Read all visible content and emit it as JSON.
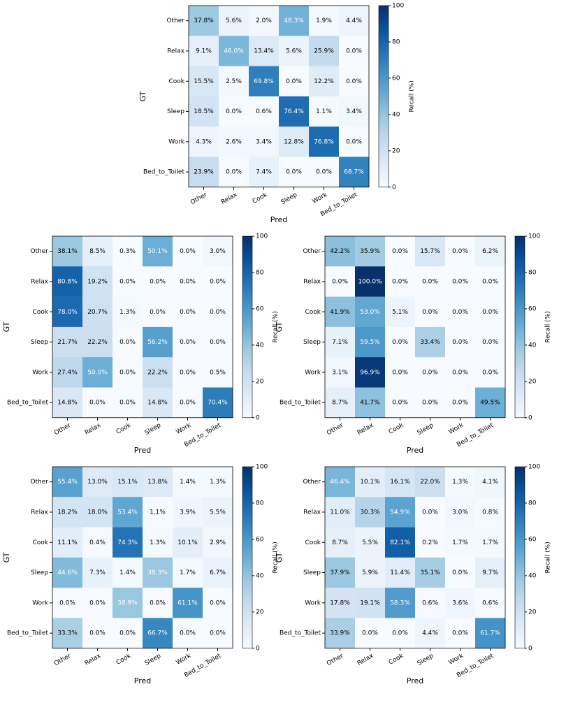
{
  "chart_data": [
    {
      "type": "heatmap",
      "x_label": "Pred",
      "y_label": "GT",
      "colorbar_label": "Recall (%)",
      "colormap": "Blues",
      "zlim": [
        0,
        100
      ],
      "zticks": [
        0,
        20,
        40,
        60,
        80,
        100
      ],
      "x_categories": [
        "Other",
        "Relax",
        "Cook",
        "Sleep",
        "Work",
        "Bed_to_Toilet"
      ],
      "y_categories": [
        "Other",
        "Relax",
        "Cook",
        "Sleep",
        "Work",
        "Bed_to_Toilet"
      ],
      "values": [
        [
          37.8,
          5.6,
          2.0,
          48.3,
          1.9,
          4.4
        ],
        [
          9.1,
          46.0,
          13.4,
          5.6,
          25.9,
          0.0
        ],
        [
          15.5,
          2.5,
          69.8,
          0.0,
          12.2,
          0.0
        ],
        [
          18.5,
          0.0,
          0.6,
          76.4,
          1.1,
          3.4
        ],
        [
          4.3,
          2.6,
          3.4,
          12.8,
          76.8,
          0.0
        ],
        [
          23.9,
          0.0,
          7.4,
          0.0,
          0.0,
          68.7
        ]
      ],
      "value_labels": [
        [
          "37.8%",
          "5.6%",
          "2.0%",
          "48.3%",
          "1.9%",
          "4.4%"
        ],
        [
          "9.1%",
          "46.0%",
          "13.4%",
          "5.6%",
          "25.9%",
          "0.0%"
        ],
        [
          "15.5%",
          "2.5%",
          "69.8%",
          "0.0%",
          "12.2%",
          "0.0%"
        ],
        [
          "18.5%",
          "0.0%",
          "0.6%",
          "76.4%",
          "1.1%",
          "3.4%"
        ],
        [
          "4.3%",
          "2.6%",
          "3.4%",
          "12.8%",
          "76.8%",
          "0.0%"
        ],
        [
          "23.9%",
          "0.0%",
          "7.4%",
          "0.0%",
          "0.0%",
          "68.7%"
        ]
      ]
    },
    {
      "type": "heatmap",
      "x_label": "Pred",
      "y_label": "GT",
      "colorbar_label": "Recall (%)",
      "colormap": "Blues",
      "zlim": [
        0,
        100
      ],
      "zticks": [
        0,
        20,
        40,
        60,
        80,
        100
      ],
      "x_categories": [
        "Other",
        "Relax",
        "Cook",
        "Sleep",
        "Work",
        "Bed_to_Toilet"
      ],
      "y_categories": [
        "Other",
        "Relax",
        "Cook",
        "Sleep",
        "Work",
        "Bed_to_Toilet"
      ],
      "values": [
        [
          38.1,
          8.5,
          0.3,
          50.1,
          0.0,
          3.0
        ],
        [
          80.8,
          19.2,
          0.0,
          0.0,
          0.0,
          0.0
        ],
        [
          78.0,
          20.7,
          1.3,
          0.0,
          0.0,
          0.0
        ],
        [
          21.7,
          22.2,
          0.0,
          56.2,
          0.0,
          0.0
        ],
        [
          27.4,
          50.0,
          0.0,
          22.2,
          0.0,
          0.5
        ],
        [
          14.8,
          0.0,
          0.0,
          14.8,
          0.0,
          70.4
        ]
      ],
      "value_labels": [
        [
          "38.1%",
          "8.5%",
          "0.3%",
          "50.1%",
          "0.0%",
          "3.0%"
        ],
        [
          "80.8%",
          "19.2%",
          "0.0%",
          "0.0%",
          "0.0%",
          "0.0%"
        ],
        [
          "78.0%",
          "20.7%",
          "1.3%",
          "0.0%",
          "0.0%",
          "0.0%"
        ],
        [
          "21.7%",
          "22.2%",
          "0.0%",
          "56.2%",
          "0.0%",
          "0.0%"
        ],
        [
          "27.4%",
          "50.0%",
          "0.0%",
          "22.2%",
          "0.0%",
          "0.5%"
        ],
        [
          "14.8%",
          "0.0%",
          "0.0%",
          "14.8%",
          "0.0%",
          "70.4%"
        ]
      ]
    },
    {
      "type": "heatmap",
      "x_label": "Pred",
      "y_label": "GT",
      "colorbar_label": "Recall (%)",
      "colormap": "Blues",
      "zlim": [
        0,
        100
      ],
      "zticks": [
        0,
        20,
        40,
        60,
        80,
        100
      ],
      "x_categories": [
        "Other",
        "Relax",
        "Cook",
        "Sleep",
        "Work",
        "Bed_to_Toilet"
      ],
      "y_categories": [
        "Other",
        "Relax",
        "Cook",
        "Sleep",
        "Work",
        "Bed_to_Toilet"
      ],
      "values": [
        [
          42.2,
          35.9,
          0.0,
          15.7,
          0.0,
          6.2
        ],
        [
          0.0,
          100.0,
          0.0,
          0.0,
          0.0,
          0.0
        ],
        [
          41.9,
          53.0,
          5.1,
          0.0,
          0.0,
          0.0
        ],
        [
          7.1,
          59.5,
          0.0,
          33.4,
          0.0,
          0.0
        ],
        [
          3.1,
          96.9,
          0.0,
          0.0,
          0.0,
          0.0
        ],
        [
          8.7,
          41.7,
          0.0,
          0.0,
          0.0,
          49.5
        ]
      ],
      "value_labels": [
        [
          "42.2%",
          "35.9%",
          "0.0%",
          "15.7%",
          "0.0%",
          "6.2%"
        ],
        [
          "0.0%",
          "100.0%",
          "0.0%",
          "0.0%",
          "0.0%",
          "0.0%"
        ],
        [
          "41.9%",
          "53.0%",
          "5.1%",
          "0.0%",
          "0.0%",
          "0.0%"
        ],
        [
          "7.1%",
          "59.5%",
          "0.0%",
          "33.4%",
          "0.0%",
          "0.0%"
        ],
        [
          "3.1%",
          "96.9%",
          "0.0%",
          "0.0%",
          "0.0%",
          "0.0%"
        ],
        [
          "8.7%",
          "41.7%",
          "0.0%",
          "0.0%",
          "0.0%",
          "49.5%"
        ]
      ]
    },
    {
      "type": "heatmap",
      "x_label": "Pred",
      "y_label": "GT",
      "colorbar_label": "Recall (%)",
      "colormap": "Blues",
      "zlim": [
        0,
        100
      ],
      "zticks": [
        0,
        20,
        40,
        60,
        80,
        100
      ],
      "x_categories": [
        "Other",
        "Relax",
        "Cook",
        "Sleep",
        "Work",
        "Bed_to_Toilet"
      ],
      "y_categories": [
        "Other",
        "Relax",
        "Cook",
        "Sleep",
        "Work",
        "Bed_to_Toilet"
      ],
      "values": [
        [
          55.4,
          13.0,
          15.1,
          13.8,
          1.4,
          1.3
        ],
        [
          18.2,
          18.0,
          53.4,
          1.1,
          3.9,
          5.5
        ],
        [
          11.1,
          0.4,
          74.3,
          1.3,
          10.1,
          2.9
        ],
        [
          44.6,
          7.3,
          1.4,
          38.3,
          1.7,
          6.7
        ],
        [
          0.0,
          0.0,
          38.9,
          0.0,
          61.1,
          0.0
        ],
        [
          33.3,
          0.0,
          0.0,
          66.7,
          0.0,
          0.0
        ]
      ],
      "value_labels": [
        [
          "55.4%",
          "13.0%",
          "15.1%",
          "13.8%",
          "1.4%",
          "1.3%"
        ],
        [
          "18.2%",
          "18.0%",
          "53.4%",
          "1.1%",
          "3.9%",
          "5.5%"
        ],
        [
          "11.1%",
          "0.4%",
          "74.3%",
          "1.3%",
          "10.1%",
          "2.9%"
        ],
        [
          "44.6%",
          "7.3%",
          "1.4%",
          "38.3%",
          "1.7%",
          "6.7%"
        ],
        [
          "0.0%",
          "0.0%",
          "38.9%",
          "0.0%",
          "61.1%",
          "0.0%"
        ],
        [
          "33.3%",
          "0.0%",
          "0.0%",
          "66.7%",
          "0.0%",
          "0.0%"
        ]
      ]
    },
    {
      "type": "heatmap",
      "x_label": "Pred",
      "y_label": "GT",
      "colorbar_label": "Recall (%)",
      "colormap": "Blues",
      "zlim": [
        0,
        100
      ],
      "zticks": [
        0,
        20,
        40,
        60,
        80,
        100
      ],
      "x_categories": [
        "Other",
        "Relax",
        "Cook",
        "Sleep",
        "Work",
        "Bed_to_Toilet"
      ],
      "y_categories": [
        "Other",
        "Relax",
        "Cook",
        "Sleep",
        "Work",
        "Bed_to_Toilet"
      ],
      "values": [
        [
          46.4,
          10.1,
          16.1,
          22.0,
          1.3,
          4.1
        ],
        [
          11.0,
          30.3,
          54.9,
          0.0,
          3.0,
          0.8
        ],
        [
          8.7,
          5.5,
          82.1,
          0.2,
          1.7,
          1.7
        ],
        [
          37.9,
          5.9,
          11.4,
          35.1,
          0.0,
          9.7
        ],
        [
          17.8,
          19.1,
          58.3,
          0.6,
          3.6,
          0.6
        ],
        [
          33.9,
          0.0,
          0.0,
          4.4,
          0.0,
          61.7
        ]
      ],
      "value_labels": [
        [
          "46.4%",
          "10.1%",
          "16.1%",
          "22.0%",
          "1.3%",
          "4.1%"
        ],
        [
          "11.0%",
          "30.3%",
          "54.9%",
          "0.0%",
          "3.0%",
          "0.8%"
        ],
        [
          "8.7%",
          "5.5%",
          "82.1%",
          "0.2%",
          "1.7%",
          "1.7%"
        ],
        [
          "37.9%",
          "5.9%",
          "11.4%",
          "35.1%",
          "0.0%",
          "9.7%"
        ],
        [
          "17.8%",
          "19.1%",
          "58.3%",
          "0.6%",
          "3.6%",
          "0.6%"
        ],
        [
          "33.9%",
          "0.0%",
          "0.0%",
          "4.4%",
          "0.0%",
          "61.7%"
        ]
      ]
    }
  ]
}
